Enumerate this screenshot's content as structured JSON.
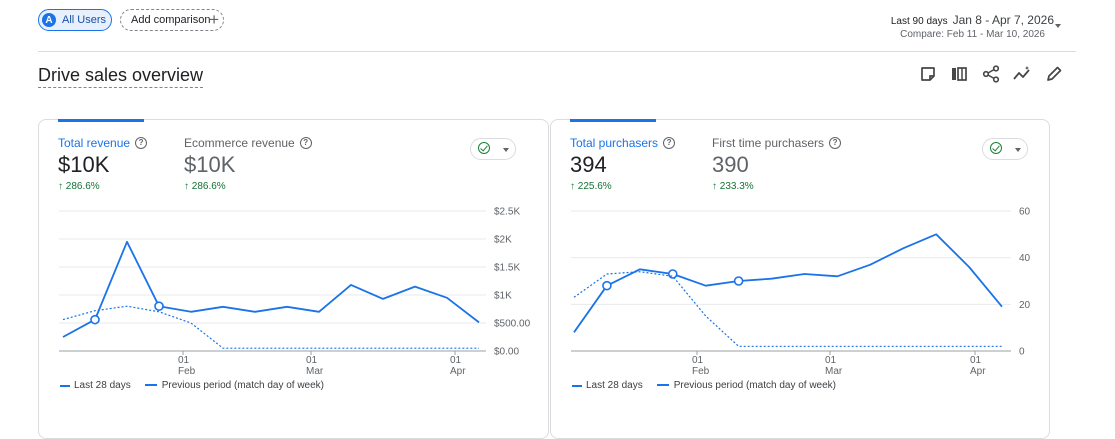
{
  "header": {
    "users_chip": {
      "avatar": "A",
      "label": "All Users"
    },
    "add_comparison": {
      "label": "Add comparison",
      "icon": "+"
    },
    "date_range": {
      "preset": "Last 90 days",
      "range": "Jan 8 - Apr 7, 2026",
      "compare": "Compare: Feb 11 - Mar 10, 2026"
    }
  },
  "page": {
    "title": "Drive sales overview"
  },
  "toolbar": {
    "icons": [
      "note-icon",
      "compare-columns-icon",
      "share-icon",
      "insights-icon",
      "edit-icon"
    ]
  },
  "colors": {
    "accent": "#1a73e8",
    "positive": "#137333",
    "check": "#188038"
  },
  "cards": [
    {
      "metrics": [
        {
          "label": "Total revenue",
          "value": "$10K",
          "delta": "286.6%",
          "active": true
        },
        {
          "label": "Ecommerce revenue",
          "value": "$10K",
          "delta": "286.6%",
          "active": false
        }
      ],
      "legend": {
        "current": "Last 28 days",
        "previous": "Previous period (match day of week)"
      }
    },
    {
      "metrics": [
        {
          "label": "Total purchasers",
          "value": "394",
          "delta": "225.6%",
          "active": true
        },
        {
          "label": "First time purchasers",
          "value": "390",
          "delta": "233.3%",
          "active": false
        }
      ],
      "legend": {
        "current": "Last 28 days",
        "previous": "Previous period (match day of week)"
      }
    }
  ],
  "chart_data": [
    {
      "type": "line",
      "x_ticks": [
        {
          "day": "01",
          "month": "Feb"
        },
        {
          "day": "01",
          "month": "Mar"
        },
        {
          "day": "01",
          "month": "Apr"
        }
      ],
      "y_ticks": [
        "$0.00",
        "$500.00",
        "$1K",
        "$1.5K",
        "$2K",
        "$2.5K"
      ],
      "ylim": [
        0,
        2500
      ],
      "series": [
        {
          "name": "Last 28 days",
          "style": "solid",
          "markers": [
            1,
            3
          ],
          "values": [
            250,
            560,
            1950,
            800,
            700,
            790,
            700,
            790,
            700,
            1180,
            930,
            1150,
            950,
            510
          ]
        },
        {
          "name": "Previous period (match day of week)",
          "style": "dashed",
          "values": [
            560,
            720,
            800,
            700,
            500,
            50,
            50,
            50,
            50,
            50,
            50,
            50,
            50,
            50
          ]
        }
      ]
    },
    {
      "type": "line",
      "x_ticks": [
        {
          "day": "01",
          "month": "Feb"
        },
        {
          "day": "01",
          "month": "Mar"
        },
        {
          "day": "01",
          "month": "Apr"
        }
      ],
      "y_ticks": [
        "0",
        "20",
        "40",
        "60"
      ],
      "ylim": [
        0,
        60
      ],
      "series": [
        {
          "name": "Last 28 days",
          "style": "solid",
          "markers": [
            1,
            3,
            5
          ],
          "values": [
            8,
            28,
            35,
            33,
            28,
            30,
            31,
            33,
            32,
            37,
            44,
            50,
            36,
            19
          ]
        },
        {
          "name": "Previous period (match day of week)",
          "style": "dashed",
          "values": [
            23,
            33,
            34,
            32,
            15,
            2,
            2,
            2,
            2,
            2,
            2,
            2,
            2,
            2
          ]
        }
      ]
    }
  ]
}
